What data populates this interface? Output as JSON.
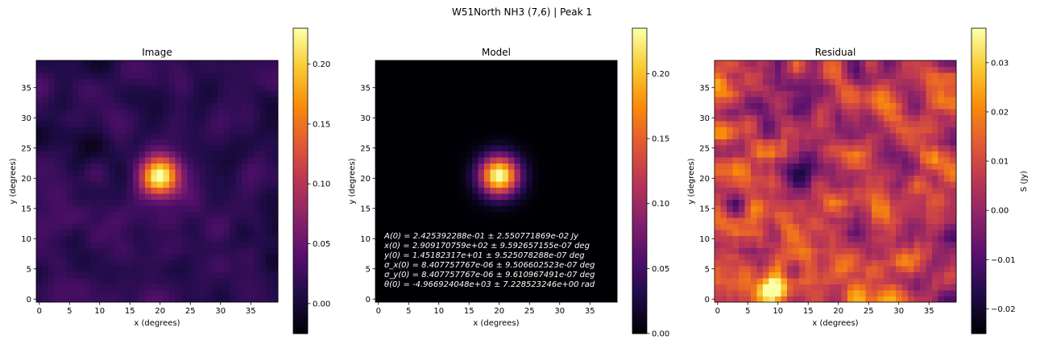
{
  "figure": {
    "suptitle": "W51North NH3 (7,6) | Peak 1"
  },
  "colormap": "inferno",
  "chart_data": [
    {
      "type": "heatmap",
      "panel": "image",
      "title": "Image",
      "xlabel": "x (degrees)",
      "ylabel": "y (degrees)",
      "xlim": [
        0,
        39
      ],
      "ylim": [
        0,
        39
      ],
      "x_ticks": [
        0,
        5,
        10,
        15,
        20,
        25,
        30,
        35
      ],
      "y_ticks": [
        0,
        5,
        10,
        15,
        20,
        25,
        30,
        35
      ],
      "grid_size": 40,
      "peak": {
        "x": 20,
        "y": 20.5,
        "value": 0.23
      },
      "colorbar": {
        "min": -0.025,
        "max": 0.23,
        "ticks": [
          0.0,
          0.05,
          0.1,
          0.15,
          0.2
        ],
        "tick_labels": [
          "0.00",
          "0.05",
          "0.10",
          "0.15",
          "0.20"
        ],
        "label": ""
      }
    },
    {
      "type": "heatmap",
      "panel": "model",
      "title": "Model",
      "xlabel": "x (degrees)",
      "ylabel": "y (degrees)",
      "xlim": [
        0,
        39
      ],
      "ylim": [
        0,
        39
      ],
      "x_ticks": [
        0,
        5,
        10,
        15,
        20,
        25,
        30,
        35
      ],
      "y_ticks": [
        0,
        5,
        10,
        15,
        20,
        25,
        30,
        35
      ],
      "grid_size": 40,
      "peak": {
        "x": 20,
        "y": 20.5,
        "value": 0.2425
      },
      "colorbar": {
        "min": 0.0,
        "max": 0.235,
        "ticks": [
          0.0,
          0.05,
          0.1,
          0.15,
          0.2
        ],
        "tick_labels": [
          "0.00",
          "0.05",
          "0.10",
          "0.15",
          "0.20"
        ],
        "label": ""
      },
      "annotations": [
        "A(0) = 2.425392288e-01 ± 2.550771869e-02 Jy",
        "x(0) = 2.909170759e+02 ± 9.592657155e-07 deg",
        "y(0) = 1.45182317e+01 ± 9.525078288e-07 deg",
        "σ_x(0) = 8.407757767e-06 ± 9.506602523e-07 deg",
        "σ_y(0) = 8.407757767e-06 ± 9.610967491e-07 deg",
        "θ(0) = -4.966924048e+03 ± 7.228523246e+00 rad"
      ]
    },
    {
      "type": "heatmap",
      "panel": "residual",
      "title": "Residual",
      "xlabel": "x (degrees)",
      "ylabel": "y (degrees)",
      "xlim": [
        0,
        39
      ],
      "ylim": [
        0,
        39
      ],
      "x_ticks": [
        0,
        5,
        10,
        15,
        20,
        25,
        30,
        35
      ],
      "y_ticks": [
        0,
        5,
        10,
        15,
        20,
        25,
        30,
        35
      ],
      "grid_size": 40,
      "colorbar": {
        "min": -0.025,
        "max": 0.037,
        "ticks": [
          -0.02,
          -0.01,
          0.0,
          0.01,
          0.02,
          0.03
        ],
        "tick_labels": [
          "−0.02",
          "−0.01",
          "0.00",
          "0.01",
          "0.02",
          "0.03"
        ],
        "label": "S (Jy)"
      }
    }
  ]
}
